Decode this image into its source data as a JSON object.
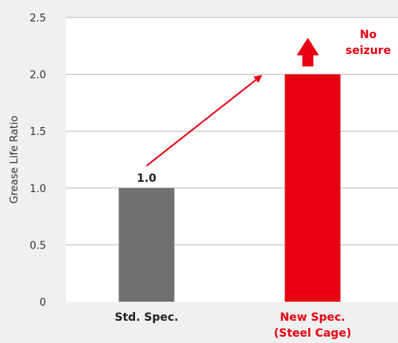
{
  "chart_data": {
    "type": "bar",
    "ylabel": "Grease Life Ratio",
    "ylim": [
      0,
      2.5
    ],
    "yticks": [
      0,
      0.5,
      1.0,
      1.5,
      2.0,
      2.5
    ],
    "ytick_labels": [
      "0",
      "0.5",
      "1.0",
      "1.5",
      "2.0",
      "2.5"
    ],
    "grid": "horizontal",
    "categories": [
      {
        "label_lines": [
          "Std. Spec."
        ],
        "value": 1.0,
        "data_label": "1.0",
        "color": "#707070",
        "label_color": "#222222"
      },
      {
        "label_lines": [
          "New Spec.",
          "(Steel Cage)"
        ],
        "value": 2.0,
        "data_label": "",
        "color": "#e60012",
        "label_color": "#e60012"
      }
    ],
    "annotation": {
      "lines": [
        "No",
        "seizure"
      ],
      "color": "#e60012"
    },
    "colors": {
      "background": "#f0f0f0",
      "plot_background": "#ffffff",
      "grid": "#bbbbbb",
      "arrow": "#e60012"
    }
  }
}
